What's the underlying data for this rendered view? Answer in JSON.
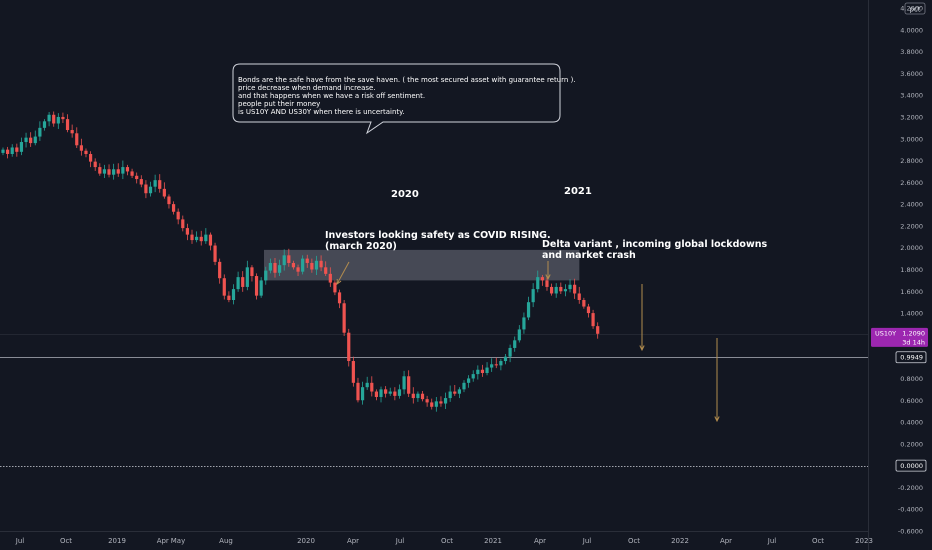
{
  "chart_data": {
    "type": "candlestick",
    "title": "",
    "currency_label": "pct",
    "ylim": [
      -0.6,
      4.2
    ],
    "yticks": [
      "4.2000",
      "4.0000",
      "3.8000",
      "3.6000",
      "3.4000",
      "3.2000",
      "3.0000",
      "2.8000",
      "2.6000",
      "2.4000",
      "2.2000",
      "2.0000",
      "1.8000",
      "1.6000",
      "1.4000",
      "1.2000",
      "1.0000",
      "0.8000",
      "0.6000",
      "0.4000",
      "0.2000",
      "0.0000",
      "-0.2000",
      "-0.4000",
      "-0.6000"
    ],
    "yticks_hidden": [
      "1.2000",
      "1.0000",
      "0.0000"
    ],
    "xticks": [
      {
        "label": "Jul",
        "x": "2018-07"
      },
      {
        "label": "Oct",
        "x": "2018-10"
      },
      {
        "label": "2019",
        "x": "2019-01"
      },
      {
        "label": "Apr",
        "x": "2019-04"
      },
      {
        "label": "May",
        "x": "2019-05"
      },
      {
        "label": "Aug",
        "x": "2019-08"
      },
      {
        "label": "2020",
        "x": "2020-01"
      },
      {
        "label": "Apr",
        "x": "2020-04"
      },
      {
        "label": "Jul",
        "x": "2020-07"
      },
      {
        "label": "Oct",
        "x": "2020-10"
      },
      {
        "label": "2021",
        "x": "2021-01"
      },
      {
        "label": "Apr",
        "x": "2021-04"
      },
      {
        "label": "Jul",
        "x": "2021-07"
      },
      {
        "label": "Oct",
        "x": "2021-10"
      },
      {
        "label": "2022",
        "x": "2022-01"
      },
      {
        "label": "Apr",
        "x": "2022-04"
      },
      {
        "label": "Jul",
        "x": "2022-07"
      },
      {
        "label": "Oct",
        "x": "2022-10"
      },
      {
        "label": "2023",
        "x": "2023-01"
      }
    ],
    "series": [
      {
        "name": "US10Y",
        "ohlc_path": [
          [
            2.87,
            2.9
          ],
          [
            2.9,
            2.86
          ],
          [
            2.86,
            2.92
          ],
          [
            2.92,
            2.88
          ],
          [
            2.88,
            2.97
          ],
          [
            2.97,
            3.01
          ],
          [
            3.01,
            2.96
          ],
          [
            2.96,
            3.02
          ],
          [
            3.02,
            3.1
          ],
          [
            3.1,
            3.16
          ],
          [
            3.16,
            3.22
          ],
          [
            3.22,
            3.14
          ],
          [
            3.14,
            3.2
          ],
          [
            3.2,
            3.18
          ],
          [
            3.18,
            3.08
          ],
          [
            3.08,
            3.05
          ],
          [
            3.05,
            2.94
          ],
          [
            2.94,
            2.89
          ],
          [
            2.89,
            2.86
          ],
          [
            2.86,
            2.79
          ],
          [
            2.79,
            2.74
          ],
          [
            2.74,
            2.68
          ],
          [
            2.68,
            2.72
          ],
          [
            2.72,
            2.67
          ],
          [
            2.67,
            2.72
          ],
          [
            2.72,
            2.68
          ],
          [
            2.68,
            2.74
          ],
          [
            2.74,
            2.7
          ],
          [
            2.7,
            2.66
          ],
          [
            2.66,
            2.63
          ],
          [
            2.63,
            2.58
          ],
          [
            2.58,
            2.5
          ],
          [
            2.5,
            2.56
          ],
          [
            2.56,
            2.62
          ],
          [
            2.62,
            2.54
          ],
          [
            2.54,
            2.47
          ],
          [
            2.47,
            2.4
          ],
          [
            2.4,
            2.33
          ],
          [
            2.33,
            2.26
          ],
          [
            2.26,
            2.18
          ],
          [
            2.18,
            2.12
          ],
          [
            2.12,
            2.07
          ],
          [
            2.07,
            2.1
          ],
          [
            2.1,
            2.06
          ],
          [
            2.06,
            2.12
          ],
          [
            2.12,
            2.02
          ],
          [
            2.02,
            1.87
          ],
          [
            1.87,
            1.72
          ],
          [
            1.72,
            1.56
          ],
          [
            1.56,
            1.52
          ],
          [
            1.52,
            1.62
          ],
          [
            1.62,
            1.73
          ],
          [
            1.73,
            1.64
          ],
          [
            1.64,
            1.82
          ],
          [
            1.82,
            1.74
          ],
          [
            1.74,
            1.56
          ],
          [
            1.56,
            1.7
          ],
          [
            1.7,
            1.79
          ],
          [
            1.79,
            1.86
          ],
          [
            1.86,
            1.77
          ],
          [
            1.77,
            1.84
          ],
          [
            1.84,
            1.93
          ],
          [
            1.93,
            1.86
          ],
          [
            1.86,
            1.82
          ],
          [
            1.82,
            1.78
          ],
          [
            1.78,
            1.9
          ],
          [
            1.9,
            1.86
          ],
          [
            1.86,
            1.8
          ],
          [
            1.8,
            1.88
          ],
          [
            1.88,
            1.82
          ],
          [
            1.82,
            1.76
          ],
          [
            1.76,
            1.68
          ],
          [
            1.68,
            1.59
          ],
          [
            1.59,
            1.49
          ],
          [
            1.49,
            1.22
          ],
          [
            1.22,
            0.96
          ],
          [
            0.96,
            0.76
          ],
          [
            0.76,
            0.6
          ],
          [
            0.6,
            0.72
          ],
          [
            0.72,
            0.76
          ],
          [
            0.76,
            0.68
          ],
          [
            0.68,
            0.63
          ],
          [
            0.63,
            0.7
          ],
          [
            0.7,
            0.66
          ],
          [
            0.66,
            0.68
          ],
          [
            0.68,
            0.64
          ],
          [
            0.64,
            0.7
          ],
          [
            0.7,
            0.82
          ],
          [
            0.82,
            0.66
          ],
          [
            0.66,
            0.62
          ],
          [
            0.62,
            0.66
          ],
          [
            0.66,
            0.61
          ],
          [
            0.61,
            0.58
          ],
          [
            0.58,
            0.54
          ],
          [
            0.54,
            0.59
          ],
          [
            0.59,
            0.57
          ],
          [
            0.57,
            0.62
          ],
          [
            0.62,
            0.68
          ],
          [
            0.68,
            0.66
          ],
          [
            0.66,
            0.7
          ],
          [
            0.7,
            0.76
          ],
          [
            0.76,
            0.8
          ],
          [
            0.8,
            0.84
          ],
          [
            0.84,
            0.88
          ],
          [
            0.88,
            0.85
          ],
          [
            0.85,
            0.9
          ],
          [
            0.9,
            0.93
          ],
          [
            0.93,
            0.92
          ],
          [
            0.92,
            0.96
          ],
          [
            0.96,
            1.0
          ],
          [
            1.0,
            1.08
          ],
          [
            1.08,
            1.15
          ],
          [
            1.15,
            1.25
          ],
          [
            1.25,
            1.36
          ],
          [
            1.36,
            1.5
          ],
          [
            1.5,
            1.62
          ],
          [
            1.62,
            1.73
          ],
          [
            1.73,
            1.7
          ],
          [
            1.7,
            1.64
          ],
          [
            1.64,
            1.58
          ],
          [
            1.58,
            1.64
          ],
          [
            1.64,
            1.6
          ],
          [
            1.6,
            1.62
          ],
          [
            1.62,
            1.66
          ],
          [
            1.66,
            1.58
          ],
          [
            1.58,
            1.52
          ],
          [
            1.52,
            1.46
          ],
          [
            1.46,
            1.4
          ],
          [
            1.4,
            1.28
          ],
          [
            1.28,
            1.21
          ]
        ]
      }
    ],
    "horizontal_lines": [
      {
        "label": "0.9949",
        "value": 0.9949,
        "style": "solid",
        "color": "#b2b5be"
      },
      {
        "label": "0.0000",
        "value": 0.0,
        "style": "dotted",
        "color": "#d1d4dc"
      }
    ],
    "last_price": {
      "symbol": "US10Y",
      "value": "1.2090",
      "countdown": "3d 14h",
      "value_num": 1.209
    },
    "highlight_zone": {
      "y_from": 1.7,
      "y_to": 1.98
    },
    "annotations": {
      "note_lines": [
        "Bonds are the safe have from the save haven. ( the most secured asset with guarantee return ).",
        "price decrease when demand increase.",
        "and that happens when we have a risk off sentiment.",
        "people put their money",
        "is US10Y AND US30Y when there is uncertainty."
      ],
      "label_2020": "2020",
      "label_2021": "2021",
      "covid_lines": [
        "Investors looking safety as COVID RISING.",
        "(march 2020)"
      ],
      "delta_lines": [
        "Delta variant , incoming global lockdowns",
        "and market crash"
      ]
    },
    "colors": {
      "background": "#131722",
      "up": "#26a69a",
      "down": "#ef5350",
      "text": "#d1d4dc",
      "axis_text": "#b2b5be",
      "accent": "#9c27b0",
      "arrow": "#b28c4e",
      "zone": "#5d606b"
    },
    "grid": false
  }
}
